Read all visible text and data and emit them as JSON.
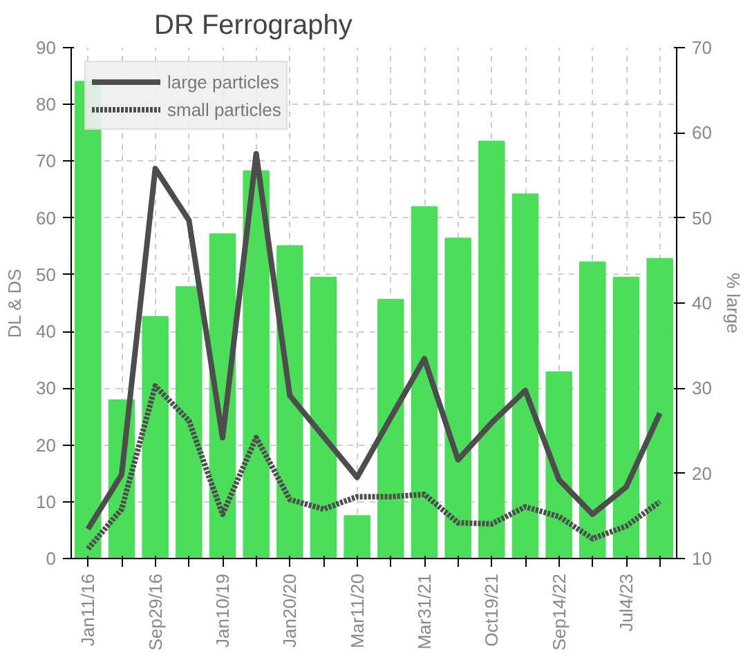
{
  "chart_data": {
    "type": "line",
    "title": "DR Ferrography",
    "ylabel": "DL & DS",
    "y2label": "% large",
    "categories": [
      "Jan11/16",
      null,
      "Sep29/16",
      null,
      "Jan10/19",
      null,
      "Jan20/20",
      null,
      "Mar11/20",
      null,
      "Mar31/21",
      null,
      "Oct19/21",
      null,
      "Sep14/22",
      null,
      "Jul4/23",
      null
    ],
    "series": [
      {
        "type": "bar",
        "axis": "y2",
        "color": "#4cdd5a",
        "values": [
          66,
          28.6,
          38.4,
          41.9,
          48.1,
          55.5,
          46.7,
          43,
          15,
          40.4,
          51.3,
          47.6,
          59,
          52.8,
          31.9,
          44.8,
          43,
          45.2
        ]
      },
      {
        "name": "large particles",
        "color": "#4d4d4d",
        "line_style": "solid",
        "values": [
          5.2,
          14.8,
          68.7,
          59.6,
          21.3,
          71.3,
          28.7,
          21.5,
          14.3,
          24.8,
          35.2,
          17.4,
          23.9,
          29.6,
          13.9,
          7.8,
          12.6,
          25.6
        ]
      },
      {
        "name": "small particles",
        "color": "#4d4d4d",
        "line_style": "dotted",
        "values": [
          1.7,
          8.7,
          30.4,
          24.3,
          7.8,
          21.3,
          10.4,
          8.7,
          10.9,
          10.9,
          11.3,
          6.3,
          6.1,
          9.1,
          7.4,
          3.5,
          5.7,
          10
        ]
      }
    ],
    "ylim": [
      0,
      90
    ],
    "yticks": [
      0,
      10,
      20,
      30,
      40,
      50,
      60,
      70,
      80,
      90
    ],
    "y2lim": [
      10,
      70
    ],
    "y2ticks": [
      10,
      20,
      30,
      40,
      50,
      60,
      70
    ],
    "grid": true,
    "legend": "top left"
  }
}
